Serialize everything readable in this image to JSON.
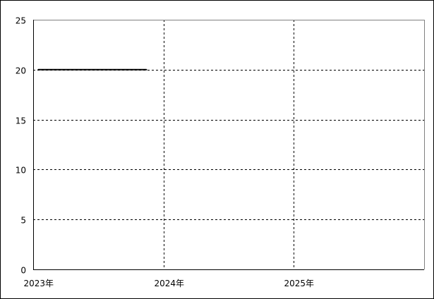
{
  "chart_data": {
    "type": "line",
    "title": "",
    "xlabel": "",
    "ylabel": "",
    "x_ticks": [
      "2023年",
      "2024年",
      "2025年"
    ],
    "y_ticks": [
      "0",
      "5",
      "10",
      "15",
      "20",
      "25"
    ],
    "xlim": [
      "2023-01-01",
      "2026-01-01"
    ],
    "ylim": [
      0,
      25
    ],
    "grid": true,
    "series": [
      {
        "color": "#000000",
        "x": [
          "2023-01-15",
          "2023-02-15",
          "2023-03-15",
          "2023-04-15",
          "2023-05-15",
          "2023-06-15",
          "2023-07-15",
          "2023-08-15",
          "2023-09-15",
          "2023-10-15",
          "2023-11-15"
        ],
        "y": [
          20,
          20,
          20,
          20,
          20,
          20,
          20,
          20,
          20,
          20,
          20
        ]
      }
    ]
  }
}
